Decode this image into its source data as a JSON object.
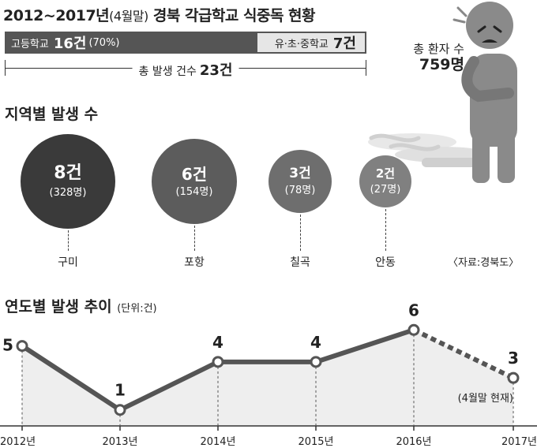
{
  "title": {
    "main": "2012~2017년",
    "paren": "(4월말)",
    "rest": " 경북 각급학교 식중독 현황"
  },
  "bar": {
    "seg1_label": "고등학교",
    "seg1_count": "16건",
    "seg1_pct": "(70%)",
    "seg2_label": "유·초·중학교",
    "seg2_count": "7건",
    "total_label": "총 발생 건수",
    "total_count": "23건"
  },
  "patients": {
    "label": "총 환자 수",
    "count": "759명"
  },
  "regions_title": "지역별 발생 수",
  "regions": [
    {
      "name": "구미",
      "count": "8건",
      "patients": "(328명)",
      "color": "#3a3a3a"
    },
    {
      "name": "포항",
      "count": "6건",
      "patients": "(154명)",
      "color": "#5c5c5c"
    },
    {
      "name": "칠곡",
      "count": "3건",
      "patients": "(78명)",
      "color": "#6e6e6e"
    },
    {
      "name": "안동",
      "count": "2건",
      "patients": "(27명)",
      "color": "#808080"
    }
  ],
  "source": "〈자료:경북도〉",
  "trend_title": "연도별 발생 추이",
  "trend_unit": "(단위:건)",
  "chart_data": {
    "type": "line",
    "title": "연도별 발생 추이",
    "unit": "(단위:건)",
    "categories": [
      "2012년",
      "2013년",
      "2014년",
      "2015년",
      "2016년",
      "2017년"
    ],
    "values": [
      5,
      1,
      4,
      4,
      6,
      3
    ],
    "value_labels": [
      "5",
      "1",
      "4",
      "4",
      "6",
      "3"
    ],
    "ylim": [
      0,
      7
    ],
    "note_last": "(4월말 현재)",
    "last_segment_style": "dashed",
    "line_color": "#555555",
    "area_color": "#eeeeee"
  }
}
